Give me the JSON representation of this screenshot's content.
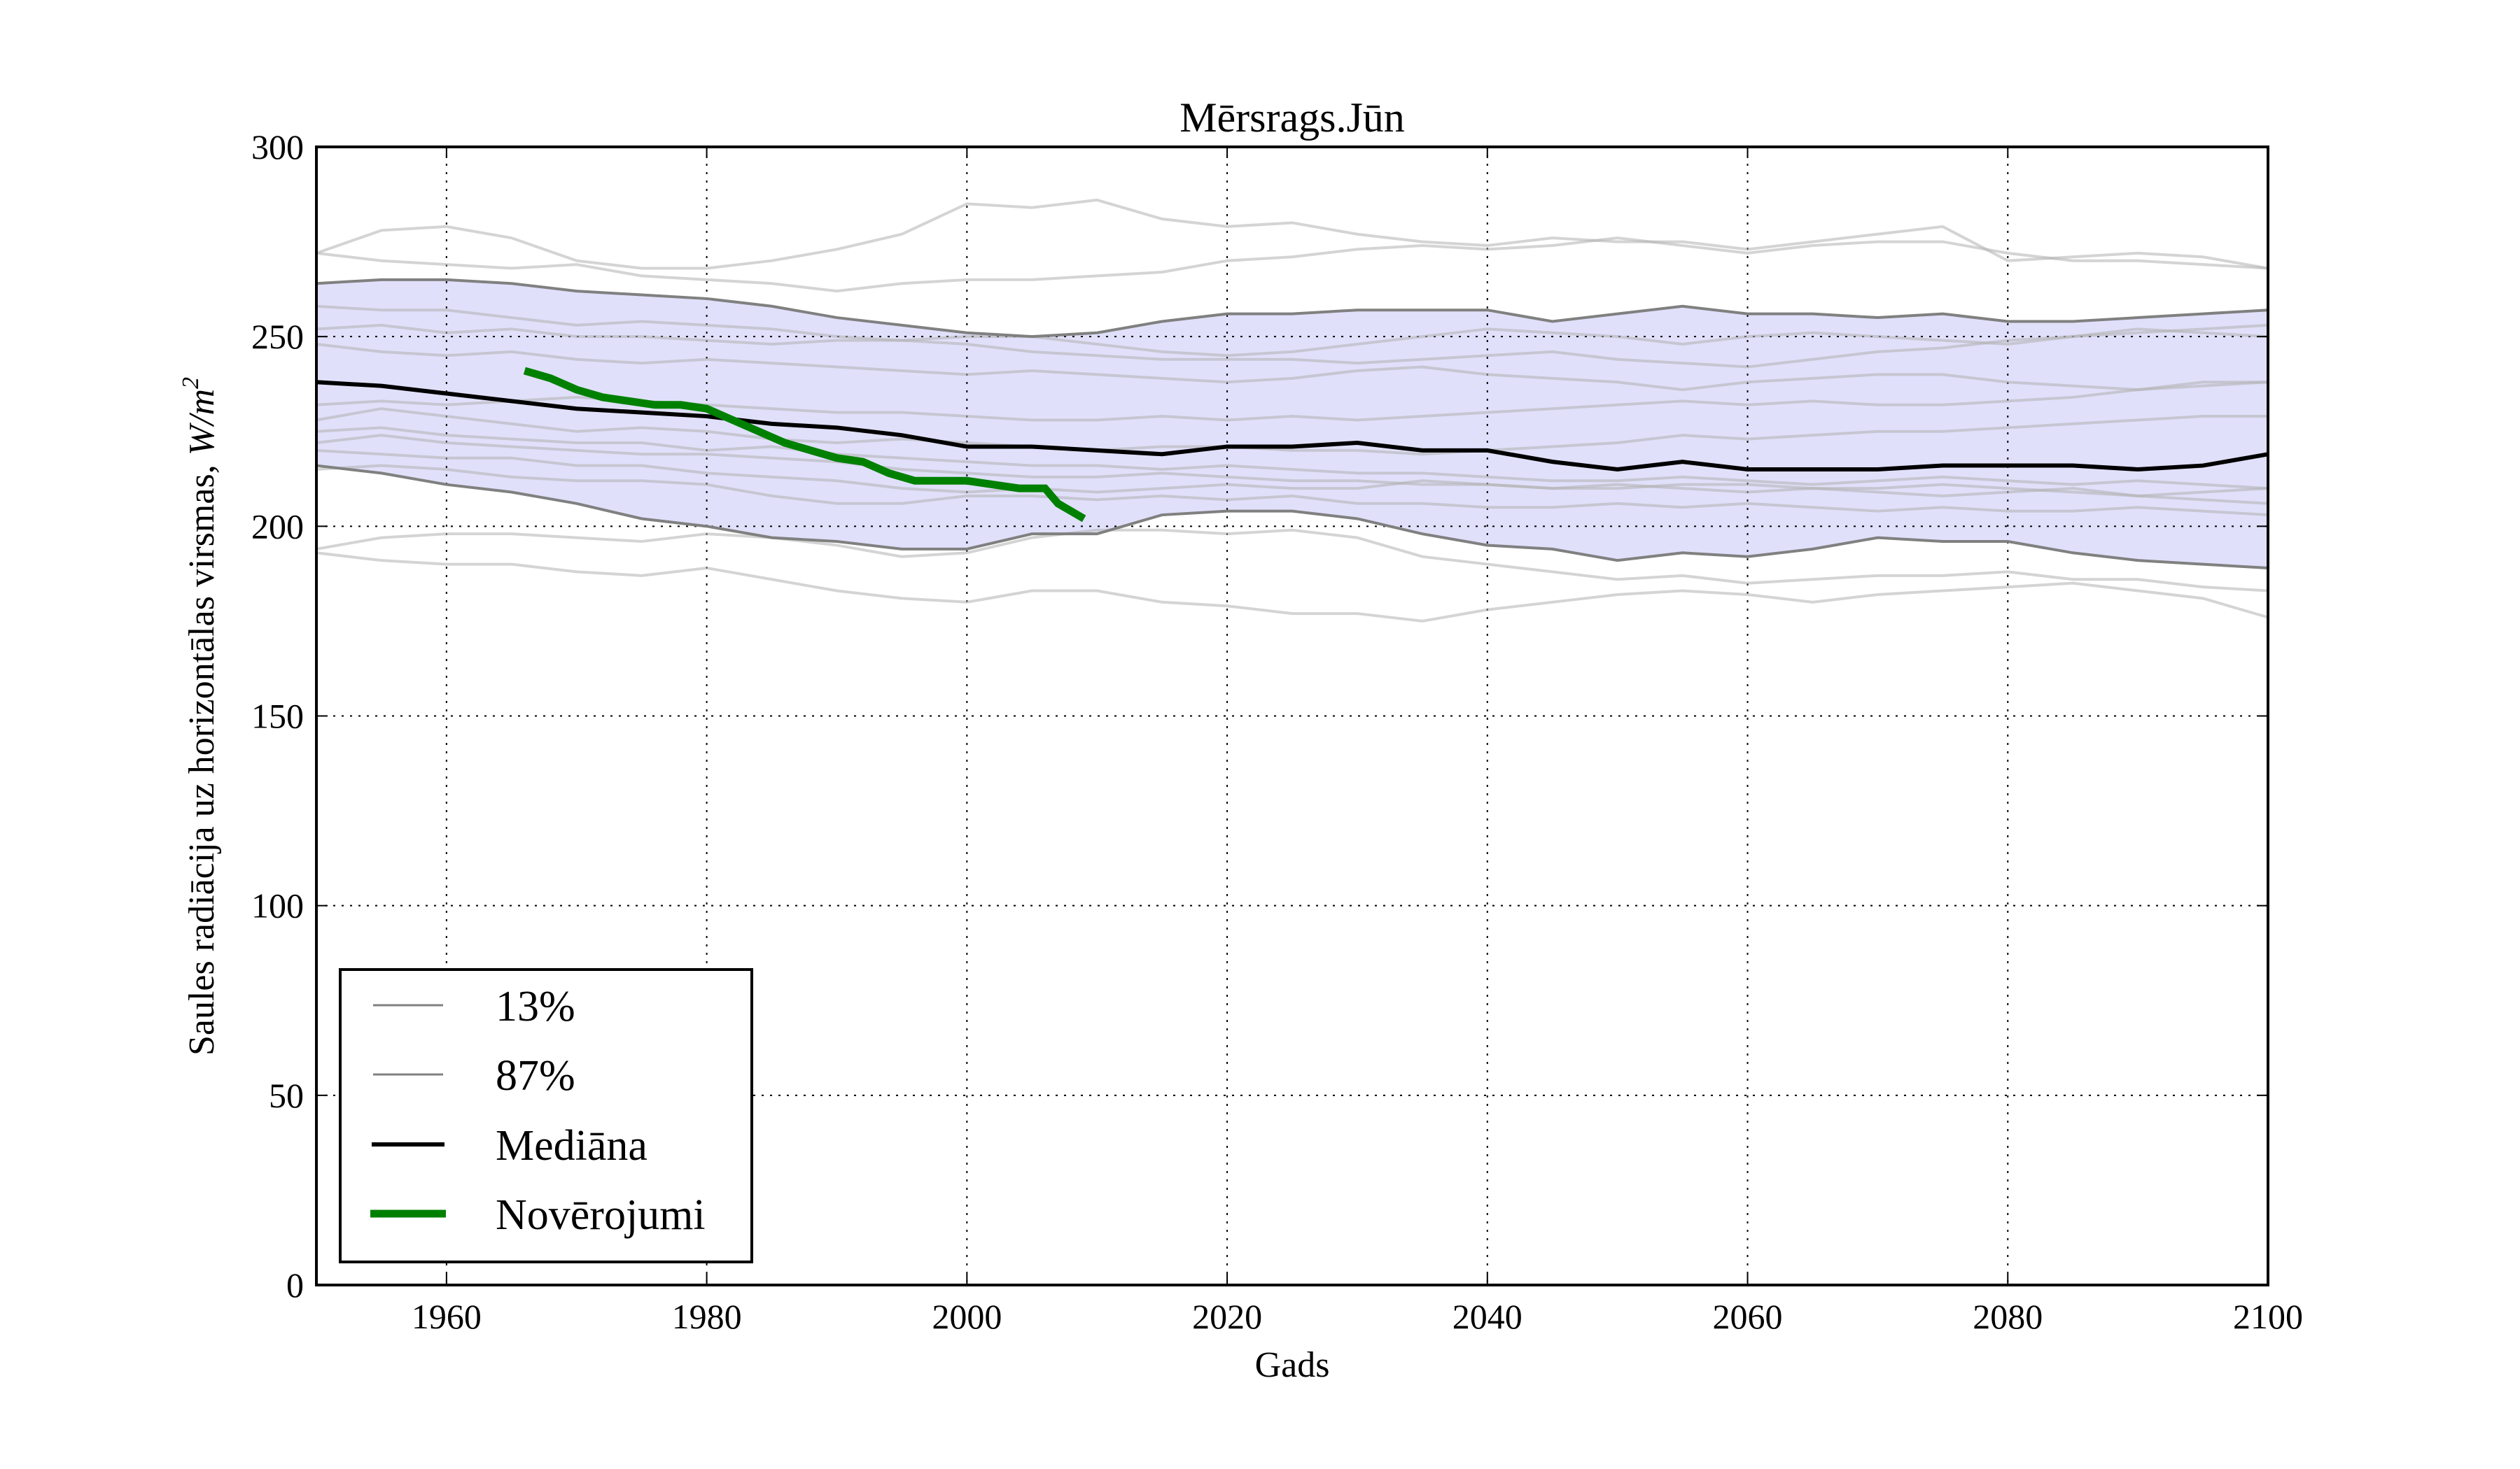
{
  "chart_data": {
    "type": "line",
    "title": "Mērsrags.Jūn",
    "xlabel": "Gads",
    "ylabel": "Saules radiācija uz horizontālas virsmas, ",
    "ylabel_unit": "W/m",
    "ylabel_unit_sup": "2",
    "xlim": [
      1950,
      2100
    ],
    "ylim": [
      0,
      300
    ],
    "xticks": [
      "1960",
      "1980",
      "2000",
      "2020",
      "2040",
      "2060",
      "2080",
      "2100"
    ],
    "yticks": [
      "0",
      "50",
      "100",
      "150",
      "200",
      "250",
      "300"
    ],
    "xtick_values": [
      1960,
      1980,
      2000,
      2020,
      2040,
      2060,
      2080,
      2100
    ],
    "ytick_values": [
      0,
      50,
      100,
      150,
      200,
      250,
      300
    ],
    "grid": true,
    "legend_position": "lower-left",
    "band_color": "#e0e0fb",
    "x": [
      1950,
      1955,
      1960,
      1965,
      1970,
      1975,
      1980,
      1985,
      1990,
      1995,
      2000,
      2005,
      2010,
      2015,
      2020,
      2025,
      2030,
      2035,
      2040,
      2045,
      2050,
      2055,
      2060,
      2065,
      2070,
      2075,
      2080,
      2085,
      2090,
      2095,
      2100
    ],
    "series": [
      {
        "name": "13%",
        "color": "#808080",
        "width": "thin",
        "values": [
          216,
          214,
          211,
          209,
          206,
          202,
          200,
          197,
          196,
          194,
          194,
          198,
          198,
          203,
          204,
          204,
          202,
          198,
          195,
          194,
          191,
          193,
          192,
          194,
          197,
          196,
          196,
          193,
          191,
          190,
          189
        ]
      },
      {
        "name": "87%",
        "color": "#808080",
        "width": "thin",
        "values": [
          264,
          265,
          265,
          264,
          262,
          261,
          260,
          258,
          255,
          253,
          251,
          250,
          251,
          254,
          256,
          256,
          257,
          257,
          257,
          254,
          256,
          258,
          256,
          256,
          255,
          256,
          254,
          254,
          255,
          256,
          257
        ]
      },
      {
        "name": "Mediāna",
        "color": "#000000",
        "width": "medium",
        "values": [
          238,
          237,
          235,
          233,
          231,
          230,
          229,
          227,
          226,
          224,
          221,
          221,
          220,
          219,
          221,
          221,
          222,
          220,
          220,
          217,
          215,
          217,
          215,
          215,
          215,
          216,
          216,
          216,
          215,
          216,
          219
        ]
      }
    ],
    "observations": {
      "name": "Novērojumi",
      "color": "#008000",
      "x": [
        1966,
        1968,
        1970,
        1972,
        1974,
        1976,
        1978,
        1980,
        1982,
        1984,
        1986,
        1988,
        1990,
        1992,
        1994,
        1996,
        1998,
        2000,
        2002,
        2004,
        2006,
        2007,
        2009
      ],
      "values": [
        241,
        239,
        236,
        234,
        233,
        232,
        232,
        231,
        228,
        225,
        222,
        220,
        218,
        217,
        214,
        212,
        212,
        212,
        211,
        210,
        210,
        206,
        202
      ]
    },
    "ensemble": [
      [
        272,
        278,
        279,
        276,
        270,
        268,
        268,
        270,
        273,
        277,
        285,
        284,
        286,
        281,
        279,
        280,
        277,
        275,
        274,
        276,
        275,
        275,
        273,
        275,
        277,
        279,
        270,
        271,
        272,
        271,
        268
      ],
      [
        272,
        270,
        269,
        268,
        269,
        266,
        265,
        264,
        262,
        264,
        265,
        265,
        266,
        267,
        270,
        271,
        273,
        274,
        273,
        274,
        276,
        274,
        272,
        274,
        275,
        275,
        272,
        270,
        270,
        269,
        268
      ],
      [
        258,
        257,
        257,
        255,
        253,
        254,
        253,
        252,
        250,
        249,
        248,
        246,
        245,
        244,
        244,
        244,
        243,
        244,
        245,
        246,
        244,
        243,
        242,
        244,
        246,
        247,
        249,
        250,
        251,
        252,
        253
      ],
      [
        252,
        253,
        251,
        252,
        250,
        250,
        249,
        248,
        249,
        249,
        250,
        250,
        248,
        246,
        245,
        246,
        248,
        250,
        252,
        251,
        250,
        248,
        250,
        251,
        250,
        249,
        248,
        250,
        252,
        251,
        250
      ],
      [
        248,
        246,
        245,
        246,
        244,
        243,
        244,
        243,
        242,
        241,
        240,
        241,
        240,
        239,
        238,
        239,
        241,
        242,
        240,
        239,
        238,
        236,
        238,
        239,
        240,
        240,
        238,
        237,
        236,
        238,
        238
      ],
      [
        232,
        233,
        232,
        233,
        234,
        233,
        232,
        231,
        230,
        230,
        229,
        228,
        228,
        229,
        228,
        229,
        228,
        229,
        230,
        231,
        232,
        233,
        232,
        233,
        232,
        232,
        233,
        234,
        236,
        237,
        238
      ],
      [
        228,
        231,
        229,
        227,
        225,
        226,
        225,
        223,
        222,
        223,
        222,
        221,
        220,
        221,
        221,
        220,
        220,
        219,
        220,
        221,
        222,
        224,
        223,
        224,
        225,
        225,
        226,
        227,
        228,
        229,
        229
      ],
      [
        225,
        226,
        224,
        223,
        222,
        222,
        220,
        221,
        219,
        218,
        217,
        216,
        216,
        215,
        216,
        215,
        214,
        214,
        213,
        212,
        212,
        213,
        212,
        211,
        212,
        213,
        212,
        211,
        212,
        211,
        210
      ],
      [
        222,
        224,
        222,
        221,
        220,
        219,
        219,
        218,
        217,
        215,
        214,
        213,
        213,
        214,
        213,
        212,
        212,
        211,
        211,
        210,
        210,
        211,
        211,
        210,
        210,
        211,
        210,
        209,
        208,
        209,
        210
      ],
      [
        220,
        219,
        218,
        218,
        216,
        216,
        214,
        213,
        212,
        210,
        209,
        210,
        209,
        210,
        211,
        210,
        210,
        212,
        211,
        210,
        211,
        210,
        209,
        210,
        209,
        208,
        209,
        210,
        208,
        207,
        206
      ],
      [
        215,
        216,
        215,
        213,
        212,
        212,
        211,
        208,
        206,
        206,
        208,
        208,
        207,
        208,
        207,
        208,
        206,
        206,
        205,
        205,
        206,
        205,
        206,
        205,
        204,
        205,
        204,
        204,
        205,
        204,
        203
      ],
      [
        194,
        197,
        198,
        198,
        197,
        196,
        198,
        197,
        195,
        192,
        193,
        197,
        199,
        199,
        198,
        199,
        197,
        192,
        190,
        188,
        186,
        187,
        185,
        186,
        187,
        187,
        188,
        186,
        186,
        184,
        183
      ],
      [
        193,
        191,
        190,
        190,
        188,
        187,
        189,
        186,
        183,
        181,
        180,
        183,
        183,
        180,
        179,
        177,
        177,
        175,
        178,
        180,
        182,
        183,
        182,
        180,
        182,
        183,
        184,
        185,
        183,
        181,
        176
      ]
    ]
  }
}
